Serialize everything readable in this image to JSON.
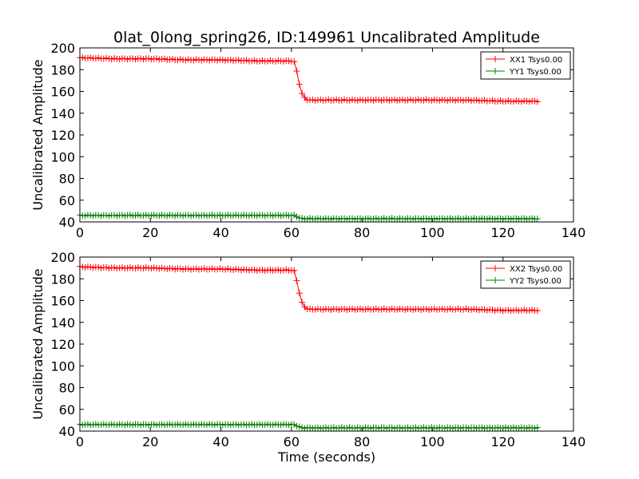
{
  "figure": {
    "title": "0lat_0long_spring26, ID:149961 Uncalibrated Amplitude",
    "xlabel": "Time (seconds)"
  },
  "chart_data": [
    {
      "type": "line",
      "ylabel": "Uncalibrated Amplitude",
      "xlim": [
        0,
        140
      ],
      "ylim": [
        40,
        200
      ],
      "xticks": [
        0,
        20,
        40,
        60,
        80,
        100,
        120,
        140
      ],
      "yticks": [
        40,
        60,
        80,
        100,
        120,
        140,
        160,
        180,
        200
      ],
      "legend_position": "top-right",
      "marker": "+",
      "series": [
        {
          "name": "XX1 Tsys0.00",
          "color": "#ff0000",
          "x": [
            0,
            10,
            20,
            30,
            40,
            50,
            60,
            61,
            62,
            63,
            64,
            65,
            70,
            80,
            90,
            100,
            110,
            120,
            130
          ],
          "y": [
            191,
            190,
            190,
            189,
            189,
            188,
            188,
            187,
            170,
            158,
            153,
            152,
            152,
            152,
            152,
            152,
            152,
            151,
            151
          ]
        },
        {
          "name": "YY1 Tsys0.00",
          "color": "#008000",
          "x": [
            0,
            20,
            40,
            60,
            61,
            62,
            63,
            64,
            80,
            100,
            120,
            130
          ],
          "y": [
            46,
            46,
            46,
            46,
            46,
            44,
            43,
            43,
            43,
            43,
            43,
            43
          ]
        }
      ]
    },
    {
      "type": "line",
      "ylabel": "Uncalibrated Amplitude",
      "xlim": [
        0,
        140
      ],
      "ylim": [
        40,
        200
      ],
      "xticks": [
        0,
        20,
        40,
        60,
        80,
        100,
        120,
        140
      ],
      "yticks": [
        40,
        60,
        80,
        100,
        120,
        140,
        160,
        180,
        200
      ],
      "legend_position": "top-right",
      "marker": "+",
      "series": [
        {
          "name": "XX2 Tsys0.00",
          "color": "#ff0000",
          "x": [
            0,
            10,
            20,
            30,
            40,
            50,
            60,
            61,
            62,
            63,
            64,
            65,
            70,
            80,
            90,
            100,
            110,
            120,
            130
          ],
          "y": [
            191,
            190,
            190,
            189,
            189,
            188,
            188,
            187,
            170,
            158,
            153,
            152,
            152,
            152,
            152,
            152,
            152,
            151,
            151
          ]
        },
        {
          "name": "YY2 Tsys0.00",
          "color": "#008000",
          "x": [
            0,
            20,
            40,
            60,
            61,
            62,
            63,
            64,
            80,
            100,
            120,
            130
          ],
          "y": [
            46,
            46,
            46,
            46,
            46,
            44,
            43,
            43,
            43,
            43,
            43,
            43
          ]
        }
      ]
    }
  ]
}
